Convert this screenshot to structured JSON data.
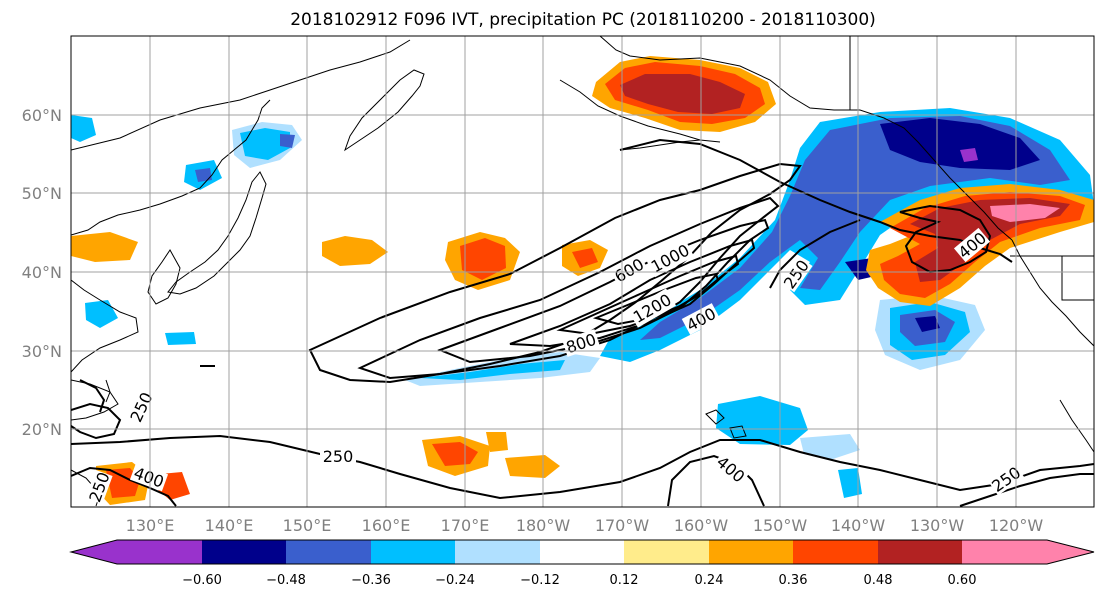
{
  "figure": {
    "title": "2018102912 F096 IVT, precipitation PC (2018110200 - 2018110300)"
  },
  "map": {
    "lat_labels": [
      "60°N",
      "50°N",
      "40°N",
      "30°N",
      "20°N"
    ],
    "lon_labels": [
      "130°E",
      "140°E",
      "150°E",
      "160°E",
      "170°E",
      "180°W",
      "170°W",
      "160°W",
      "150°W",
      "140°W",
      "130°W",
      "120°W"
    ],
    "ivt_contour_labels": [
      "600",
      "1000",
      "1200",
      "800",
      "400",
      "250",
      "400",
      "250",
      "250",
      "400",
      "250",
      "400",
      "250"
    ]
  },
  "colorbar": {
    "tick_labels": [
      "−0.60",
      "−0.48",
      "−0.36",
      "−0.24",
      "−0.12",
      "0.12",
      "0.24",
      "0.36",
      "0.48",
      "0.60"
    ],
    "colors": [
      "#9932cc",
      "#00008b",
      "#3a5fcd",
      "#00bfff",
      "#b0e0ff",
      "#ffffff",
      "#ffec8b",
      "#ffa500",
      "#ff4500",
      "#b22222",
      "#ff82ab"
    ]
  },
  "colors": {
    "neg_0_12": "#b0e0ff",
    "neg_0_24": "#00bfff",
    "neg_0_36": "#3a5fcd",
    "neg_0_48": "#00008b",
    "neg_0_60": "#9932cc",
    "pos_0_12": "#ffec8b",
    "pos_0_24": "#ffa500",
    "pos_0_36": "#ff4500",
    "pos_0_48": "#b22222",
    "pos_0_60": "#ff82ab"
  }
}
